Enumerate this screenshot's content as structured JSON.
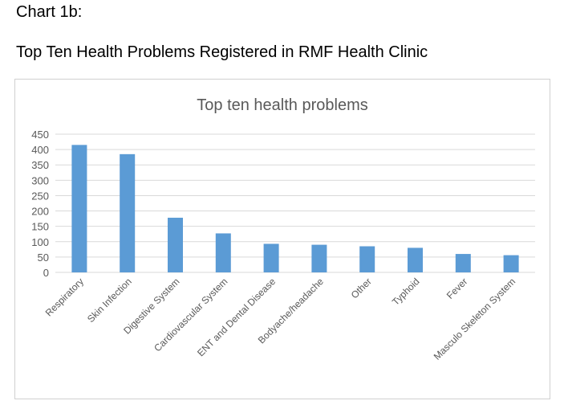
{
  "document": {
    "label": "Chart 1b:",
    "heading": "Top Ten Health Problems Registered in RMF Health Clinic"
  },
  "colors": {
    "bar": "#5b9bd5",
    "grid": "#d9d9d9",
    "text": "#595959"
  },
  "chart_data": {
    "type": "bar",
    "title": "Top ten health problems",
    "categories": [
      "Respiratory",
      "Skin Infection",
      "Digestive System",
      "Cardiovascular System",
      "ENT and Dental Disease",
      "Bodyache/headache",
      "Other",
      "Typhoid",
      "Fever",
      "Masculo Skeleton System"
    ],
    "values": [
      415,
      385,
      178,
      127,
      93,
      90,
      85,
      80,
      60,
      56
    ],
    "yticks": [
      0,
      50,
      100,
      150,
      200,
      250,
      300,
      350,
      400,
      450
    ],
    "ylim": [
      0,
      450
    ],
    "grid": true,
    "legend": false
  }
}
